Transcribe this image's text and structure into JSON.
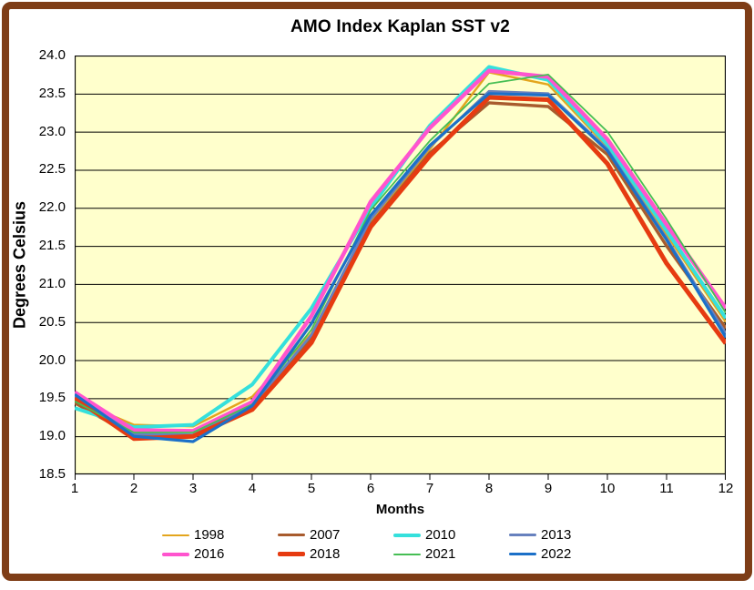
{
  "chart_data": {
    "type": "line",
    "title": "AMO Index Kaplan SST v2",
    "xlabel": "Months",
    "ylabel": "Degrees Celsius",
    "x": [
      1,
      2,
      3,
      4,
      5,
      6,
      7,
      8,
      9,
      10,
      11,
      12
    ],
    "x_tick_labels": [
      "1",
      "2",
      "3",
      "4",
      "5",
      "6",
      "7",
      "8",
      "9",
      "10",
      "11",
      "12"
    ],
    "ylim": [
      18.5,
      24.0
    ],
    "y_tick_step": 0.5,
    "y_tick_labels": [
      "18.5",
      "19.0",
      "19.5",
      "20.0",
      "20.5",
      "21.0",
      "21.5",
      "22.0",
      "22.5",
      "23.0",
      "23.5",
      "24.0"
    ],
    "grid": "horizontal",
    "legend_position": "bottom",
    "plot_bg_color": "#FFFFCC",
    "frame_color": "#7E3D17",
    "gridline_color": "#000000",
    "series": [
      {
        "name": "1998",
        "color": "#E3A51D",
        "width": 2.4,
        "values": [
          19.48,
          19.15,
          19.13,
          19.52,
          20.35,
          21.83,
          22.77,
          23.78,
          23.62,
          22.8,
          21.65,
          20.5
        ]
      },
      {
        "name": "2007",
        "color": "#A85B2D",
        "width": 3.4,
        "values": [
          19.44,
          19.0,
          19.0,
          19.37,
          20.3,
          21.78,
          22.72,
          23.38,
          23.33,
          22.7,
          21.5,
          20.42
        ]
      },
      {
        "name": "2010",
        "color": "#35E0DC",
        "width": 4.0,
        "values": [
          19.37,
          19.12,
          19.15,
          19.68,
          20.68,
          22.0,
          23.08,
          23.85,
          23.68,
          22.83,
          21.7,
          20.55
        ]
      },
      {
        "name": "2013",
        "color": "#6781BE",
        "width": 2.8,
        "values": [
          19.53,
          19.03,
          19.02,
          19.4,
          20.33,
          21.85,
          22.8,
          23.53,
          23.5,
          22.77,
          21.6,
          20.35
        ]
      },
      {
        "name": "2016",
        "color": "#FF54CE",
        "width": 4.4,
        "values": [
          19.58,
          19.08,
          19.07,
          19.45,
          20.58,
          22.08,
          23.05,
          23.8,
          23.72,
          22.9,
          21.78,
          20.68
        ]
      },
      {
        "name": "2018",
        "color": "#E63B11",
        "width": 5.0,
        "values": [
          19.5,
          18.97,
          19.0,
          19.35,
          20.23,
          21.75,
          22.68,
          23.45,
          23.42,
          22.58,
          21.27,
          20.22
        ]
      },
      {
        "name": "2021",
        "color": "#46BE54",
        "width": 1.8,
        "values": [
          19.46,
          19.05,
          19.05,
          19.42,
          20.4,
          21.97,
          22.88,
          23.63,
          23.75,
          23.0,
          21.85,
          20.62
        ]
      },
      {
        "name": "2022",
        "color": "#1C70C8",
        "width": 3.2,
        "values": [
          19.55,
          19.0,
          18.93,
          19.4,
          20.48,
          21.9,
          22.82,
          23.5,
          23.48,
          22.75,
          21.58,
          20.3
        ]
      }
    ]
  }
}
